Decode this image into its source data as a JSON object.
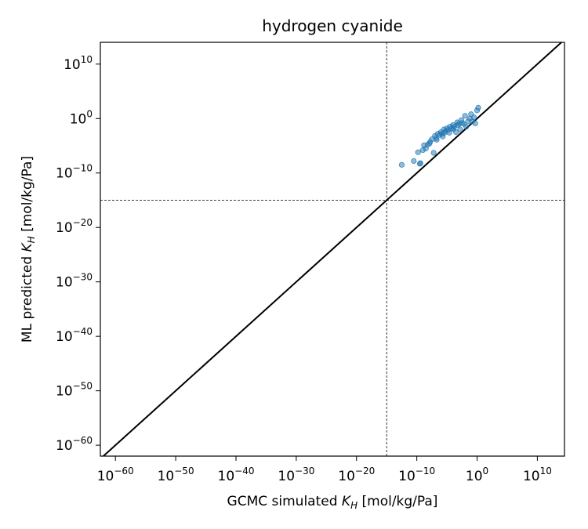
{
  "chart_data": {
    "type": "scatter",
    "title": "hydrogen cyanide",
    "xlabel": {
      "prefix": "GCMC simulated ",
      "var": "K",
      "sub": "H",
      "suffix": " [mol/kg/Pa]"
    },
    "ylabel": {
      "prefix": "ML predicted ",
      "var": "K",
      "sub": "H",
      "suffix": " [mol/kg/Pa]"
    },
    "scale": "log",
    "xlim_exp": [
      -62.5,
      14.5
    ],
    "ylim_exp": [
      -62,
      14
    ],
    "ticks": [
      {
        "base": "10",
        "exp": "−60",
        "value": -60
      },
      {
        "base": "10",
        "exp": "−50",
        "value": -50
      },
      {
        "base": "10",
        "exp": "−40",
        "value": -40
      },
      {
        "base": "10",
        "exp": "−30",
        "value": -30
      },
      {
        "base": "10",
        "exp": "−20",
        "value": -20
      },
      {
        "base": "10",
        "exp": "−10",
        "value": -10
      },
      {
        "base": "10",
        "exp": "0",
        "value": 0
      },
      {
        "base": "10",
        "exp": "10",
        "value": 10
      }
    ],
    "reference_lines": {
      "diagonal": "y = x",
      "vline_exp": -15,
      "hline_exp": -15,
      "style": "dashed"
    },
    "series": [
      {
        "color": "#1f77b4",
        "points_log10": [
          [
            -12.5,
            -8.5
          ],
          [
            -10.5,
            -7.8
          ],
          [
            -9.8,
            -6.2
          ],
          [
            -9.5,
            -8.3
          ],
          [
            -9.4,
            -8.2
          ],
          [
            -9.0,
            -5.8
          ],
          [
            -8.5,
            -5.5
          ],
          [
            -8.2,
            -4.8
          ],
          [
            -7.8,
            -4.3
          ],
          [
            -7.5,
            -3.8
          ],
          [
            -7.2,
            -6.3
          ],
          [
            -7.0,
            -3.2
          ],
          [
            -6.8,
            -3.6
          ],
          [
            -6.5,
            -2.8
          ],
          [
            -6.2,
            -3.0
          ],
          [
            -6.0,
            -2.5
          ],
          [
            -5.8,
            -2.8
          ],
          [
            -5.5,
            -2.0
          ],
          [
            -5.2,
            -2.3
          ],
          [
            -5.0,
            -1.8
          ],
          [
            -4.8,
            -2.1
          ],
          [
            -4.5,
            -1.5
          ],
          [
            -4.2,
            -1.8
          ],
          [
            -4.0,
            -1.2
          ],
          [
            -3.8,
            -1.5
          ],
          [
            -3.5,
            -2.5
          ],
          [
            -3.2,
            -1.2
          ],
          [
            -3.0,
            -1.0
          ],
          [
            -2.8,
            -2.0
          ],
          [
            -2.5,
            -0.8
          ],
          [
            -2.0,
            0.5
          ],
          [
            -1.8,
            -1.5
          ],
          [
            -1.5,
            -0.5
          ],
          [
            -1.0,
            0.8
          ],
          [
            -0.8,
            -0.5
          ],
          [
            -0.5,
            0.2
          ],
          [
            0.0,
            1.5
          ],
          [
            0.2,
            2.0
          ],
          [
            -2.2,
            -1.0
          ],
          [
            -3.3,
            -0.7
          ],
          [
            -4.6,
            -2.6
          ],
          [
            -5.7,
            -3.3
          ],
          [
            -6.7,
            -3.9
          ],
          [
            -7.9,
            -4.6
          ],
          [
            -8.8,
            -4.9
          ],
          [
            -1.2,
            0.0
          ],
          [
            -2.6,
            -0.3
          ],
          [
            -3.9,
            -1.9
          ],
          [
            -0.3,
            -0.9
          ],
          [
            -5.4,
            -2.6
          ]
        ]
      }
    ]
  }
}
